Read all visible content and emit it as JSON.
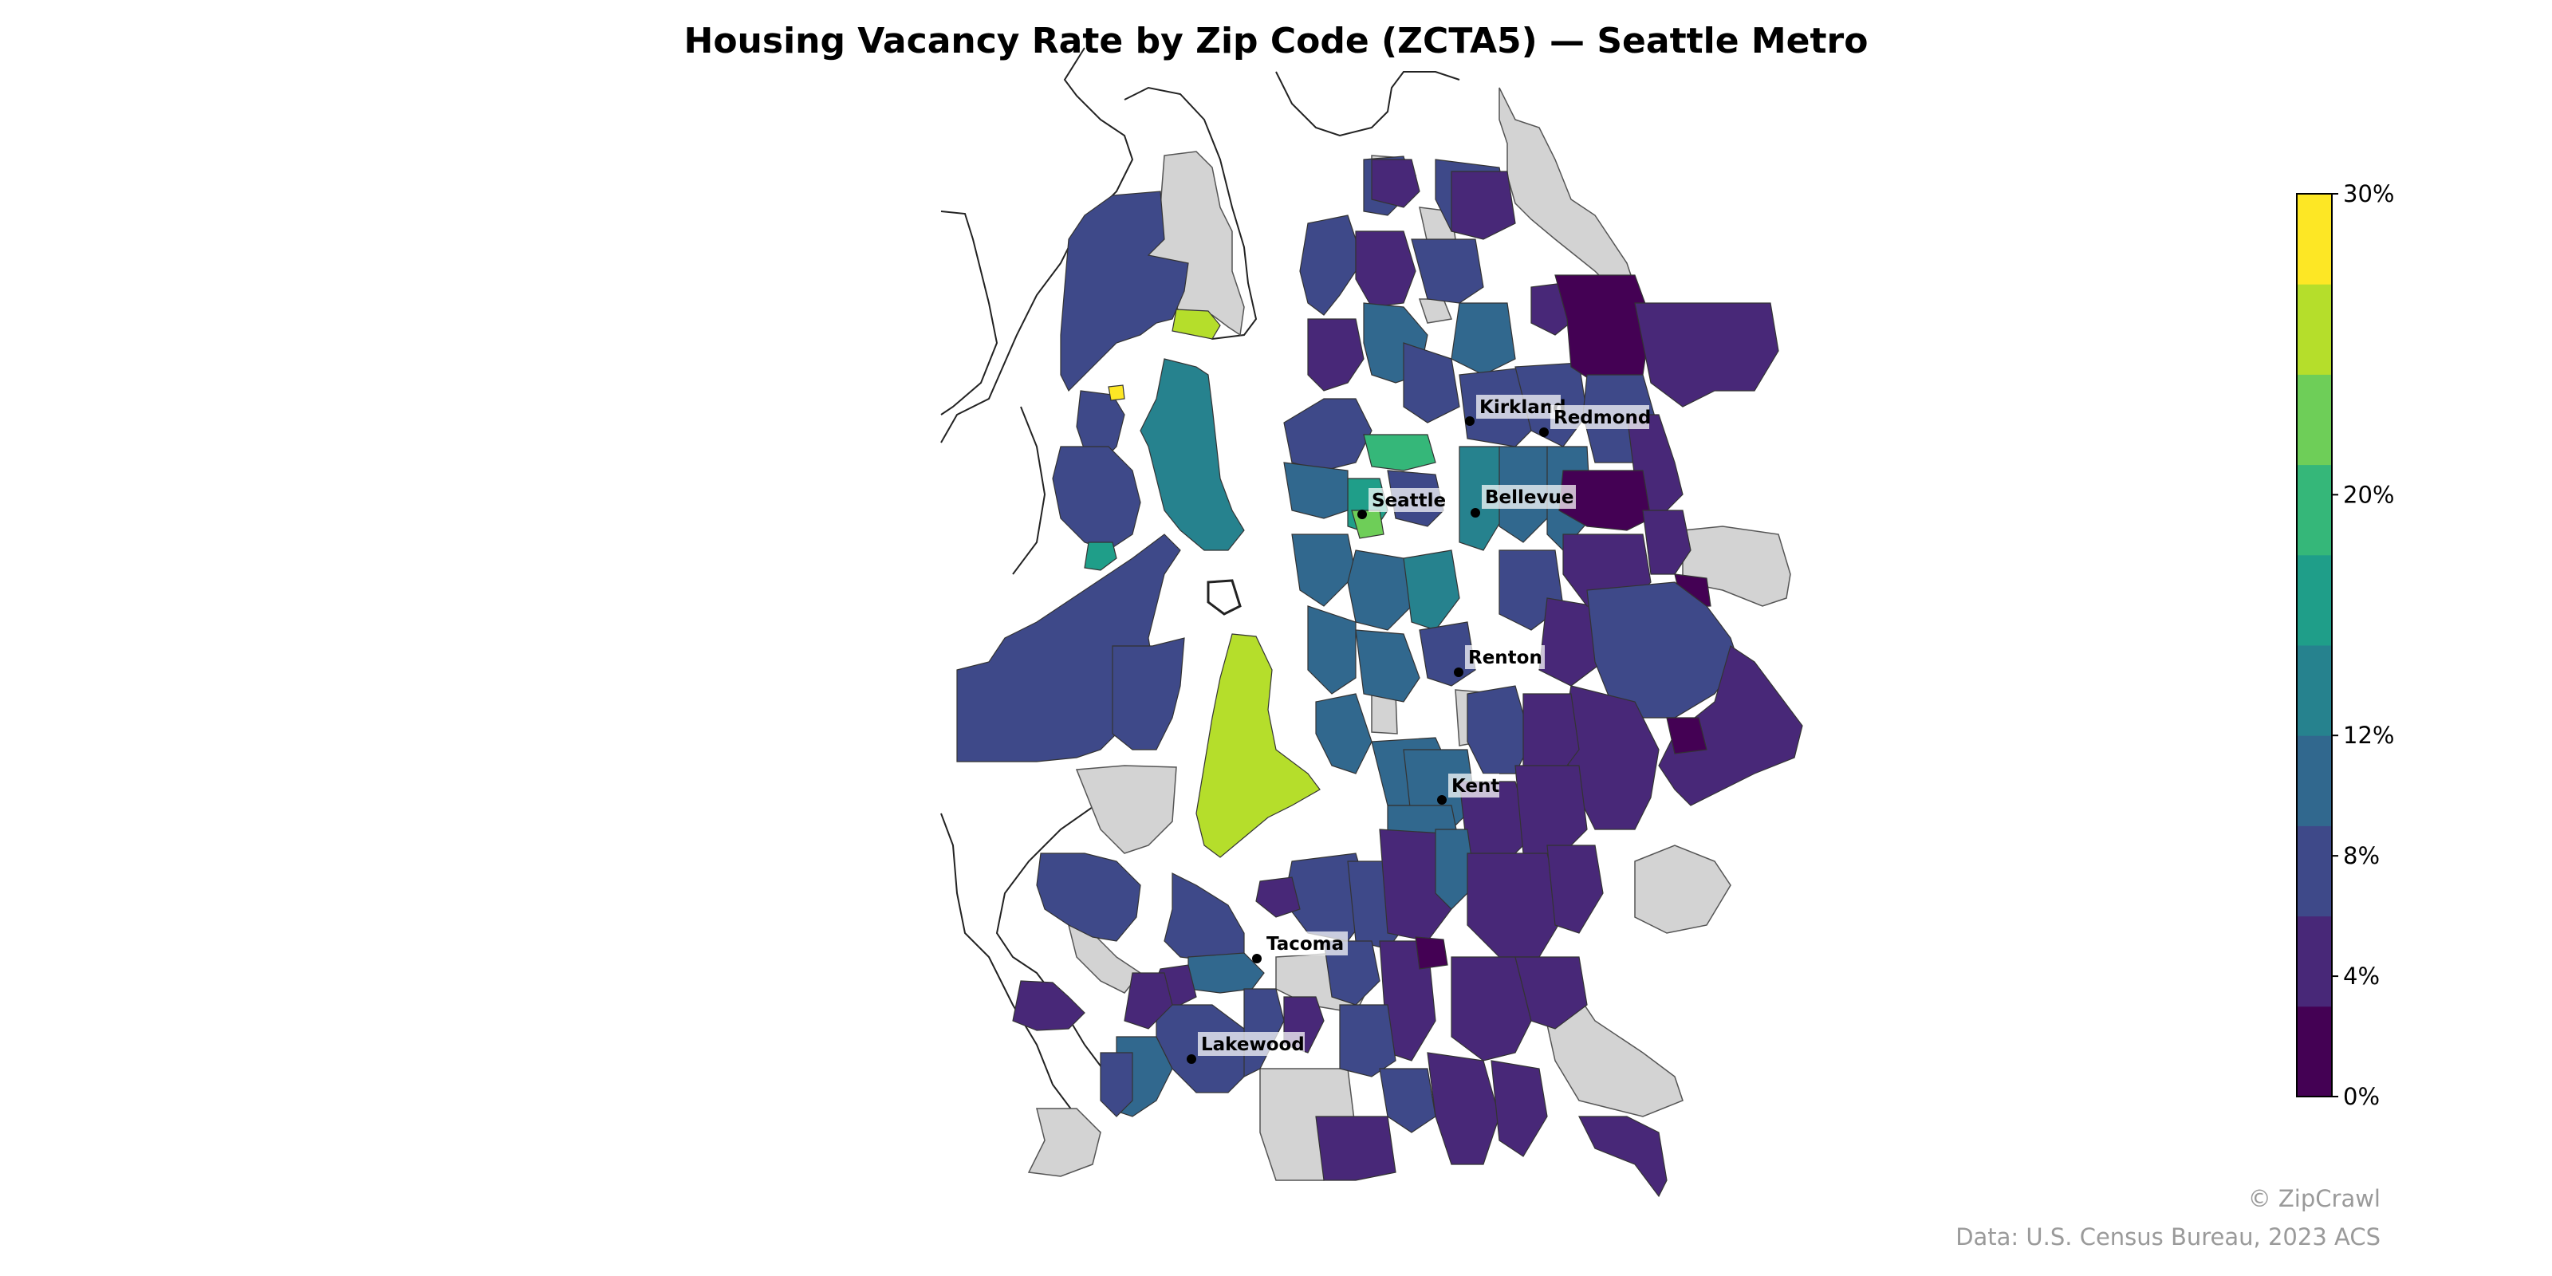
{
  "title": "Housing Vacancy Rate by Zip Code (ZCTA5) — Seattle Metro",
  "colorbar": {
    "min": 0,
    "max": 30,
    "colors": [
      "#440154",
      "#482878",
      "#3e4989",
      "#31688e",
      "#26828e",
      "#1f9e89",
      "#35b779",
      "#6ece58",
      "#b5de2b",
      "#fde725"
    ],
    "tick_labels": [
      "0%",
      "4%",
      "8%",
      "12%",
      "20%",
      "30%"
    ]
  },
  "no_data_color": "#d3d3d3",
  "cities": [
    "Kirkland",
    "Redmond",
    "Seattle",
    "Bellevue",
    "Renton",
    "Kent",
    "Tacoma",
    "Lakewood"
  ],
  "credit": "© ZipCrawl",
  "source": "Data: U.S. Census Bureau, 2023 ACS"
}
